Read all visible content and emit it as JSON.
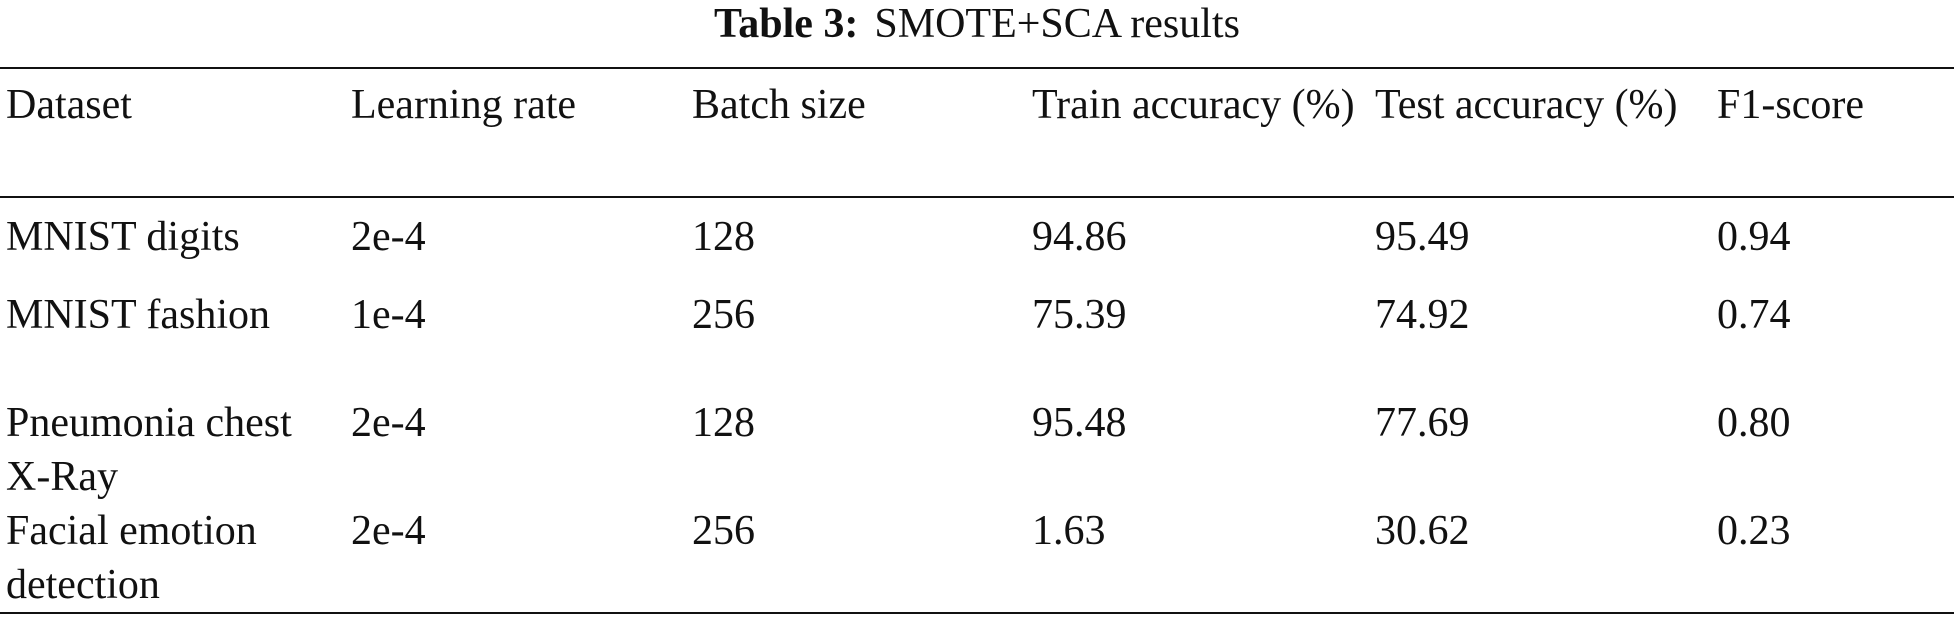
{
  "caption": {
    "label": "Table 3:",
    "text": "SMOTE+SCA results"
  },
  "table": {
    "headers": [
      "Dataset",
      "Learning rate",
      "Batch size",
      "Train accuracy (%)",
      "Test accuracy (%)",
      "F1-score"
    ],
    "rows": [
      [
        "MNIST digits",
        "2e-4",
        "128",
        "94.86",
        "95.49",
        "0.94"
      ],
      [
        "MNIST fashion",
        "1e-4",
        "256",
        "75.39",
        "74.92",
        "0.74"
      ],
      [
        "Pneumonia chest X-Ray",
        "2e-4",
        "128",
        "95.48",
        "77.69",
        "0.80"
      ],
      [
        "Facial emotion detection",
        "2e-4",
        "256",
        "1.63",
        "30.62",
        "0.23"
      ]
    ]
  }
}
